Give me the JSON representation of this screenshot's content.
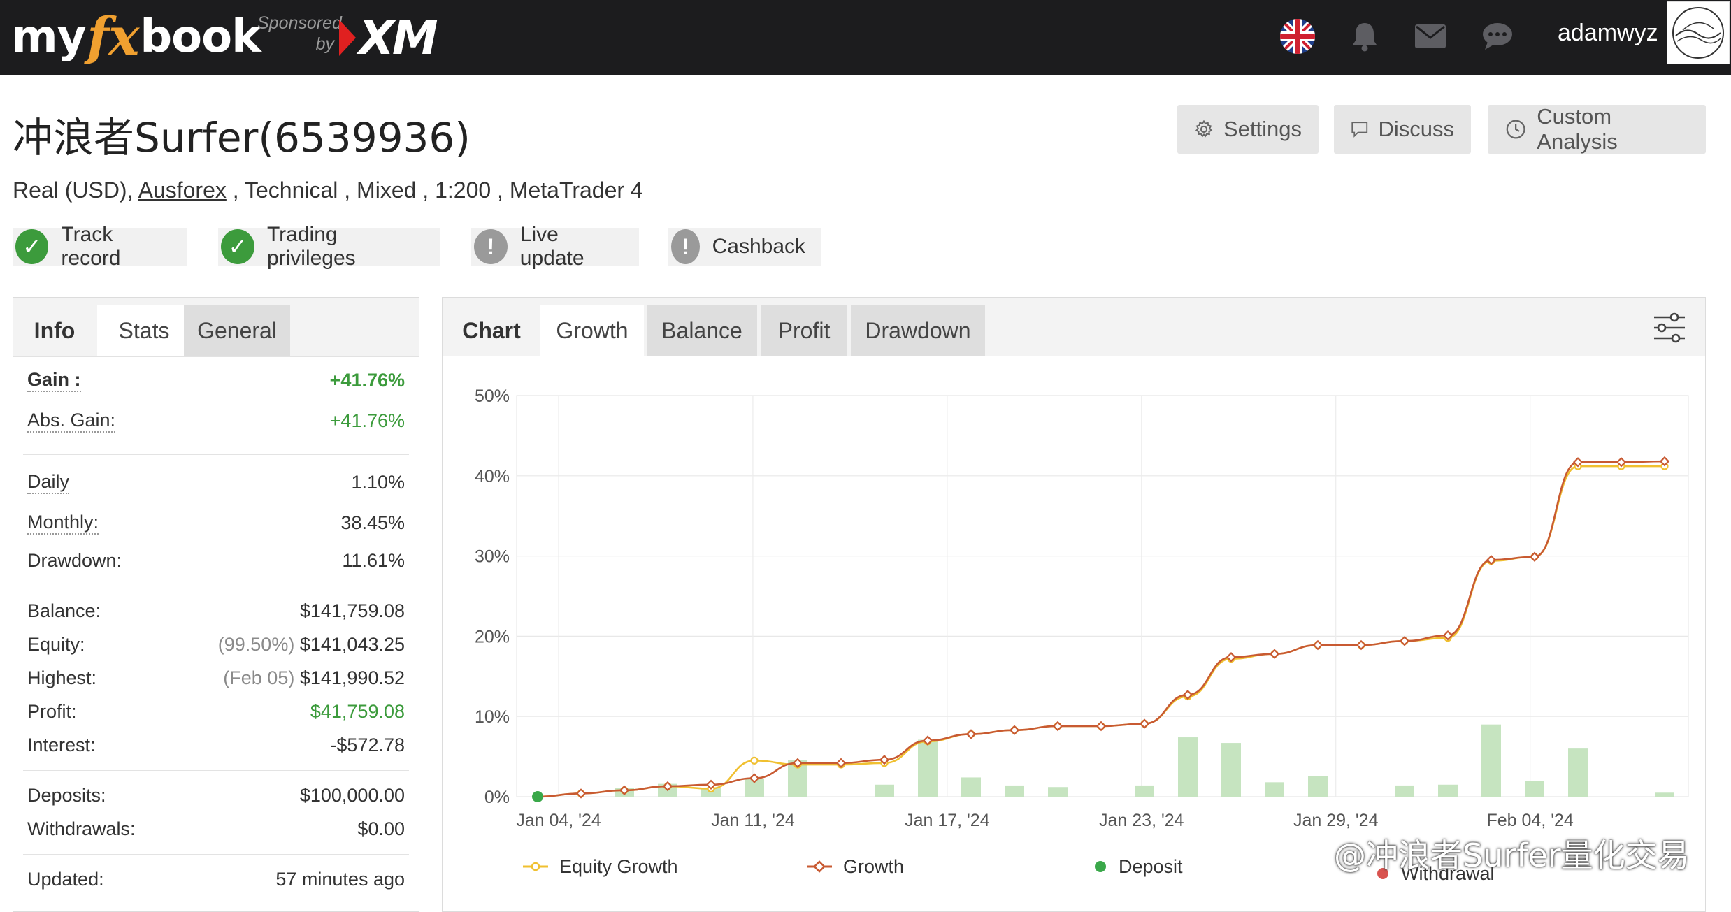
{
  "header": {
    "logo_parts": [
      "my",
      "fx",
      "book"
    ],
    "sponsor_line1": "Sponsored",
    "sponsor_line2": "by",
    "sponsor_brand": "XM",
    "username": "adamwyz",
    "icons": [
      "uk-flag-icon",
      "bell-icon",
      "mail-icon",
      "chat-icon"
    ],
    "colors": {
      "bar": "#1c1c1e",
      "accent": "#f0a030"
    }
  },
  "account": {
    "title": "冲浪者Surfer(6539936)",
    "sub_prefix": "Real (USD), ",
    "broker": "Ausforex",
    "sub_rest": " , Technical , Mixed , 1:200 , MetaTrader 4",
    "actions": [
      {
        "label": "Settings",
        "icon": "gear-icon"
      },
      {
        "label": "Discuss",
        "icon": "comment-icon"
      },
      {
        "label": "Custom Analysis",
        "icon": "clock-icon"
      }
    ],
    "badges": [
      {
        "label": "Track record",
        "status": "ok"
      },
      {
        "label": "Trading privileges",
        "status": "ok"
      },
      {
        "label": "Live update",
        "status": "warn"
      },
      {
        "label": "Cashback",
        "status": "warn"
      }
    ]
  },
  "info_panel": {
    "tabs": [
      "Info",
      "Stats",
      "General"
    ],
    "gain_label": "Gain :",
    "gain_value": "+41.76%",
    "abs_gain_label": "Abs. Gain:",
    "abs_gain_value": "+41.76%",
    "daily_label": "Daily",
    "daily_value": "1.10%",
    "monthly_label": "Monthly:",
    "monthly_value": "38.45%",
    "drawdown_label": "Drawdown:",
    "drawdown_value": "11.61%",
    "balance_label": "Balance:",
    "balance_value": "$141,759.08",
    "equity_label": "Equity:",
    "equity_note": "(99.50%)",
    "equity_value": "$141,043.25",
    "highest_label": "Highest:",
    "highest_note": "(Feb 05)",
    "highest_value": "$141,990.52",
    "profit_label": "Profit:",
    "profit_value": "$41,759.08",
    "interest_label": "Interest:",
    "interest_value": "-$572.78",
    "deposits_label": "Deposits:",
    "deposits_value": "$100,000.00",
    "withdrawals_label": "Withdrawals:",
    "withdrawals_value": "$0.00",
    "updated_label": "Updated:",
    "updated_value": "57 minutes ago"
  },
  "chart_panel": {
    "tabs": [
      "Chart",
      "Growth",
      "Balance",
      "Profit",
      "Drawdown"
    ],
    "active_tab": "Growth",
    "filter_icon": "sliders-icon"
  },
  "chart_data": {
    "type": "line",
    "title": "",
    "xlabel": "",
    "ylabel": "",
    "ylim": [
      0,
      50
    ],
    "y_ticks": [
      "0%",
      "10%",
      "20%",
      "30%",
      "40%",
      "50%"
    ],
    "x_ticks": [
      "Jan 04, '24",
      "Jan 11, '24",
      "Jan 17, '24",
      "Jan 23, '24",
      "Jan 29, '24",
      "Feb 04, '24"
    ],
    "grid": true,
    "legend_placement": "bottom",
    "legend": [
      "Equity Growth",
      "Growth",
      "Deposit",
      "Withdrawal"
    ],
    "colors": {
      "equity": "#f0c030",
      "growth": "#c85a32",
      "deposit": "#3aa84a",
      "withdrawal": "#d9534f",
      "bars": "#c6e4c0"
    },
    "series": [
      {
        "name": "Equity Growth",
        "values": [
          0,
          0.4,
          0.8,
          1.3,
          1.0,
          4.5,
          4.0,
          4.0,
          4.2,
          6.9,
          7.8,
          8.3,
          8.8,
          8.8,
          9.1,
          12.5,
          17.2,
          17.8,
          18.9,
          18.9,
          19.4,
          19.8,
          29.4,
          29.9,
          41.2,
          41.2,
          41.2
        ]
      },
      {
        "name": "Growth",
        "values": [
          0,
          0.4,
          0.8,
          1.3,
          1.5,
          2.3,
          4.2,
          4.2,
          4.6,
          7.0,
          7.8,
          8.3,
          8.8,
          8.8,
          9.1,
          12.7,
          17.4,
          17.8,
          18.9,
          18.9,
          19.4,
          20.1,
          29.5,
          29.9,
          41.7,
          41.7,
          41.8
        ]
      }
    ],
    "bar_series": {
      "name": "Daily",
      "values": [
        0,
        0,
        1.1,
        1.6,
        1.1,
        2.2,
        4.6,
        0,
        1.5,
        7.1,
        2.4,
        1.4,
        1.2,
        0,
        1.4,
        7.4,
        6.7,
        1.8,
        2.6,
        0,
        1.4,
        1.5,
        9.0,
        2.0,
        6.0,
        0,
        0.5
      ]
    },
    "deposit_points": [
      {
        "index": 0,
        "value": 0
      }
    ]
  },
  "watermark": "@冲浪者Surfer量化交易"
}
